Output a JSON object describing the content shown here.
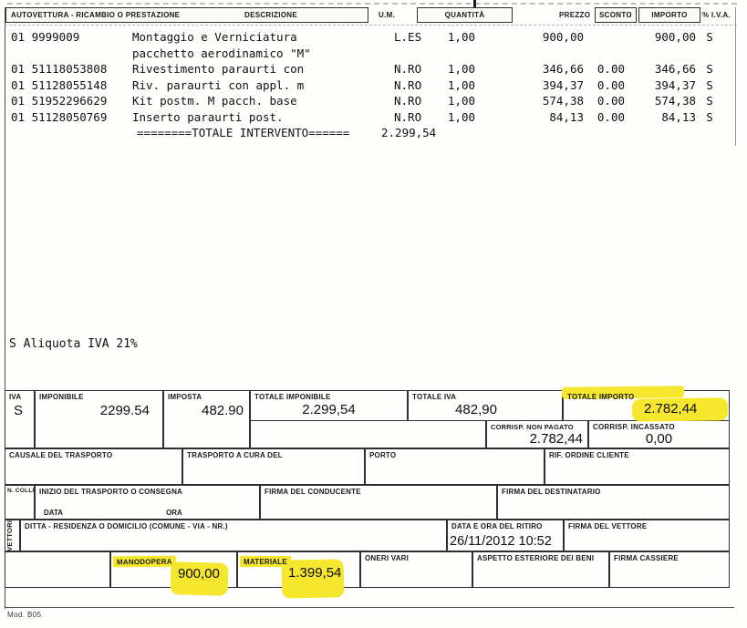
{
  "vat_note": "S Aliquota IVA 21%",
  "items_table": {
    "header": {
      "autovettura": "AUTOVETTURA - RICAMBIO O PRESTAZIONE",
      "descrizione": "DESCRIZIONE",
      "um": "U.M.",
      "quantita": "QUANTITÀ",
      "prezzo": "PREZZO",
      "sconto": "SCONTO",
      "importo": "IMPORTO",
      "perc_iva": "% I.V.A."
    },
    "rows": [
      {
        "code": "01 9999009",
        "desc": [
          "Montaggio e Verniciatura",
          "pacchetto aerodinamico \"M\""
        ],
        "um": "L.ES",
        "qty": "1,00",
        "price": "900,00",
        "discount": "",
        "amount": "900,00",
        "vat": "S"
      },
      {
        "code": "01 51118053808",
        "desc": [
          "Rivestimento paraurti con"
        ],
        "um": "N.RO",
        "qty": "1,00",
        "price": "346,66",
        "discount": "0.00",
        "amount": "346,66",
        "vat": "S"
      },
      {
        "code": "01 51128055148",
        "desc": [
          "Riv. paraurti con appl. m"
        ],
        "um": "N.RO",
        "qty": "1,00",
        "price": "394,37",
        "discount": "0.00",
        "amount": "394,37",
        "vat": "S"
      },
      {
        "code": "01 51952296629",
        "desc": [
          "Kit postm. M pacch. base"
        ],
        "um": "N.RO",
        "qty": "1,00",
        "price": "574,38",
        "discount": "0.00",
        "amount": "574,38",
        "vat": "S"
      },
      {
        "code": "01 51128050769",
        "desc": [
          "Inserto paraurti post."
        ],
        "um": "N.RO",
        "qty": "1,00",
        "price": "84,13",
        "discount": "0.00",
        "amount": "84,13",
        "vat": "S"
      }
    ],
    "total_label": "========TOTALE INTERVENTO======",
    "total_value": "2.299,54"
  },
  "summary": {
    "iva_label": "IVA",
    "iva_value": "S",
    "imponibile_label": "IMPONIBILE",
    "imponibile_value": "2299.54",
    "imposta_label": "IMPOSTA",
    "imposta_value": "482.90",
    "totale_imponibile_label": "TOTALE IMPONIBILE",
    "totale_imponibile_value": "2.299,54",
    "totale_iva_label": "TOTALE IVA",
    "totale_iva_value": "482,90",
    "totale_importo_label": "TOTALE IMPORTO",
    "totale_importo_value": "2.782,44",
    "corrisp_non_pagato_label": "CORRISP. NON PAGATO",
    "corrisp_non_pagato_value": "2.782,44",
    "corrisp_incassato_label": "CORRISP. INCASSATO",
    "corrisp_incassato_value": "0,00"
  },
  "transport": {
    "causale_label": "CAUSALE DEL TRASPORTO",
    "a_cura_label": "TRASPORTO A CURA DEL",
    "porto_label": "PORTO",
    "rif_ordine_label": "RIF. ORDINE CLIENTE",
    "n_colli_label": "N. COLLI",
    "inizio_label": "INIZIO DEL TRASPORTO O CONSEGNA",
    "data_label": "DATA",
    "ora_label": "ORA",
    "firma_conducente_label": "FIRMA DEL CONDUCENTE",
    "firma_destinatario_label": "FIRMA DEL DESTINATARIO",
    "vettori_label": "VETTORI",
    "ditta_label": "DITTA - RESIDENZA O DOMICILIO (COMUNE - VIA - NR.)",
    "data_ritiro_label": "DATA E ORA DEL RITIRO",
    "data_ritiro_value": "26/11/2012 10:52",
    "firma_vettore_label": "FIRMA DEL VETTORE"
  },
  "footer": {
    "manodopera_label": "MANODOPERA",
    "manodopera_value": "900,00",
    "materiale_label": "MATERIALE",
    "materiale_value": "1.399,54",
    "oneri_label": "ONERI VARI",
    "aspetto_label": "ASPETTO ESTERIORE DEI BENI",
    "firma_cassiere_label": "FIRMA CASSIERE",
    "mod_ref": "Mod. B05"
  },
  "colors": {
    "highlight": "#f4e72e",
    "ink": "#101010"
  }
}
